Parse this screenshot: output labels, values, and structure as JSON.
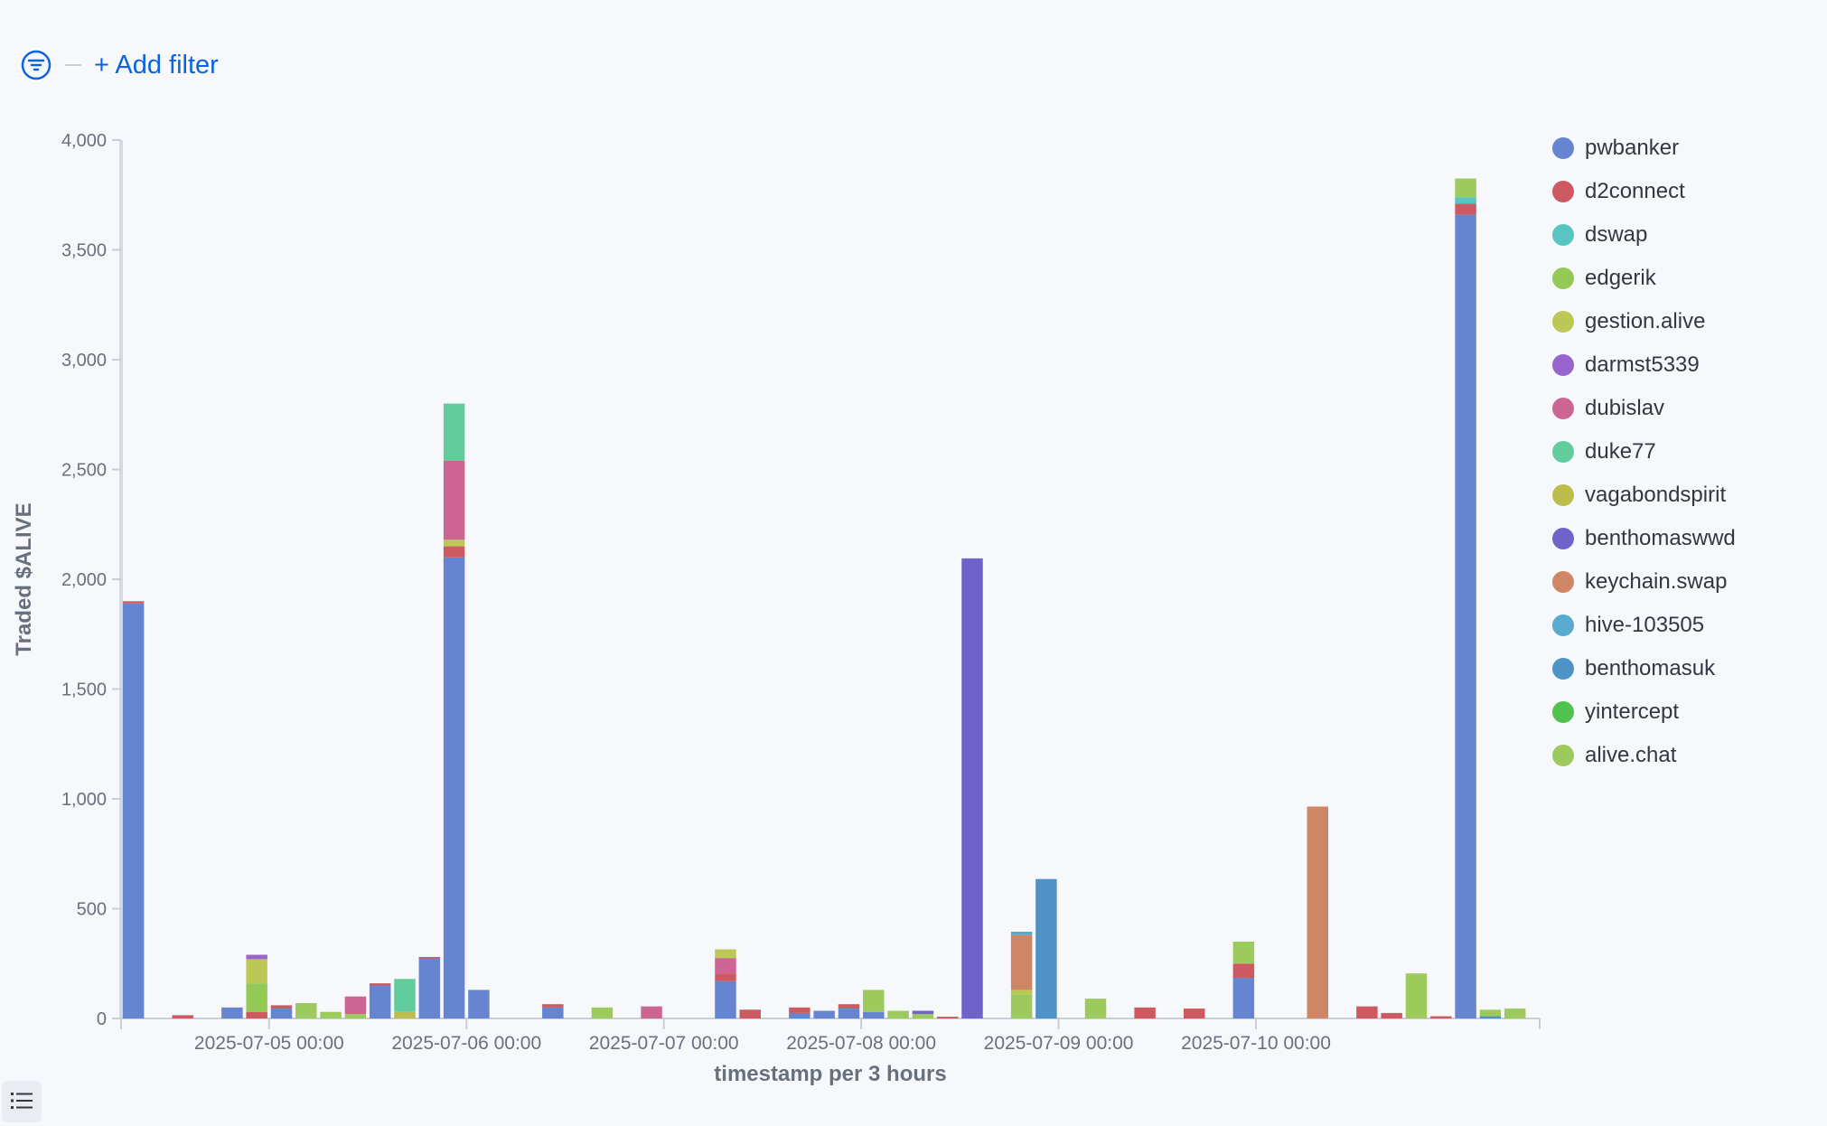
{
  "filter": {
    "add_label": "+ Add filter",
    "icon": "filter-icon"
  },
  "legend_toggle": {
    "icon": "list-icon"
  },
  "chart_data": {
    "type": "bar",
    "stacked": true,
    "xlabel": "timestamp per 3 hours",
    "ylabel": "Traded $ALIVE",
    "ylim": [
      0,
      4000
    ],
    "yticks": [
      0,
      500,
      1000,
      1500,
      2000,
      2500,
      3000,
      3500,
      4000
    ],
    "ytick_labels": [
      "0",
      "500",
      "1,000",
      "1,500",
      "2,000",
      "2,500",
      "3,000",
      "3,500",
      "4,000"
    ],
    "x_start": "2025-07-04 06:00",
    "x_end": "2025-07-11 06:00",
    "interval_hours": 3,
    "xtick_labels": [
      "2025-07-05 00:00",
      "2025-07-06 00:00",
      "2025-07-07 00:00",
      "2025-07-08 00:00",
      "2025-07-09 00:00",
      "2025-07-10 00:00"
    ],
    "grid": false,
    "legend_position": "right",
    "series": [
      {
        "name": "pwbanker",
        "color": "#6685d0"
      },
      {
        "name": "d2connect",
        "color": "#cc5a60"
      },
      {
        "name": "dswap",
        "color": "#58c5c2"
      },
      {
        "name": "edgerik",
        "color": "#94c955"
      },
      {
        "name": "gestion.alive",
        "color": "#bcc856"
      },
      {
        "name": "darmst5339",
        "color": "#9a64cf"
      },
      {
        "name": "dubislav",
        "color": "#cd6592"
      },
      {
        "name": "duke77",
        "color": "#62cc9c"
      },
      {
        "name": "vagabondspirit",
        "color": "#bdbd4e"
      },
      {
        "name": "benthomaswwd",
        "color": "#6f63c9"
      },
      {
        "name": "keychain.swap",
        "color": "#cf8664"
      },
      {
        "name": "hive-103505",
        "color": "#5aa9cf"
      },
      {
        "name": "benthomasuk",
        "color": "#4f93c6"
      },
      {
        "name": "yintercept",
        "color": "#4fc24f"
      },
      {
        "name": "alive.chat",
        "color": "#9dca5d"
      }
    ],
    "bars": [
      {
        "t": "2025-07-04 06:00",
        "stack": [
          [
            "pwbanker",
            1890
          ],
          [
            "d2connect",
            10
          ]
        ]
      },
      {
        "t": "2025-07-04 12:00",
        "stack": [
          [
            "d2connect",
            15
          ]
        ]
      },
      {
        "t": "2025-07-04 18:00",
        "stack": [
          [
            "pwbanker",
            50
          ]
        ]
      },
      {
        "t": "2025-07-04 21:00",
        "stack": [
          [
            "d2connect",
            30
          ],
          [
            "edgerik",
            130
          ],
          [
            "gestion.alive",
            110
          ],
          [
            "darmst5339",
            20
          ]
        ]
      },
      {
        "t": "2025-07-05 00:00",
        "stack": [
          [
            "pwbanker",
            45
          ],
          [
            "d2connect",
            15
          ]
        ]
      },
      {
        "t": "2025-07-05 03:00",
        "stack": [
          [
            "alive.chat",
            70
          ]
        ]
      },
      {
        "t": "2025-07-05 06:00",
        "stack": [
          [
            "alive.chat",
            30
          ]
        ]
      },
      {
        "t": "2025-07-05 09:00",
        "stack": [
          [
            "alive.chat",
            20
          ],
          [
            "dubislav",
            80
          ]
        ]
      },
      {
        "t": "2025-07-05 12:00",
        "stack": [
          [
            "pwbanker",
            150
          ],
          [
            "d2connect",
            10
          ]
        ]
      },
      {
        "t": "2025-07-05 15:00",
        "stack": [
          [
            "vagabondspirit",
            30
          ],
          [
            "duke77",
            150
          ]
        ]
      },
      {
        "t": "2025-07-05 18:00",
        "stack": [
          [
            "pwbanker",
            275
          ],
          [
            "d2connect",
            5
          ]
        ]
      },
      {
        "t": "2025-07-05 21:00",
        "stack": [
          [
            "pwbanker",
            2100
          ],
          [
            "d2connect",
            50
          ],
          [
            "gestion.alive",
            30
          ],
          [
            "dubislav",
            360
          ],
          [
            "duke77",
            260
          ]
        ]
      },
      {
        "t": "2025-07-06 00:00",
        "stack": [
          [
            "pwbanker",
            130
          ]
        ]
      },
      {
        "t": "2025-07-06 09:00",
        "stack": [
          [
            "pwbanker",
            50
          ],
          [
            "d2connect",
            15
          ]
        ]
      },
      {
        "t": "2025-07-06 15:00",
        "stack": [
          [
            "alive.chat",
            50
          ]
        ]
      },
      {
        "t": "2025-07-06 21:00",
        "stack": [
          [
            "dubislav",
            55
          ]
        ]
      },
      {
        "t": "2025-07-07 06:00",
        "stack": [
          [
            "pwbanker",
            170
          ],
          [
            "d2connect",
            35
          ],
          [
            "dubislav",
            70
          ],
          [
            "gestion.alive",
            40
          ]
        ]
      },
      {
        "t": "2025-07-07 09:00",
        "stack": [
          [
            "d2connect",
            40
          ]
        ]
      },
      {
        "t": "2025-07-07 15:00",
        "stack": [
          [
            "pwbanker",
            25
          ],
          [
            "d2connect",
            25
          ]
        ]
      },
      {
        "t": "2025-07-07 18:00",
        "stack": [
          [
            "pwbanker",
            35
          ]
        ]
      },
      {
        "t": "2025-07-07 21:00",
        "stack": [
          [
            "pwbanker",
            45
          ],
          [
            "d2connect",
            20
          ]
        ]
      },
      {
        "t": "2025-07-08 00:00",
        "stack": [
          [
            "pwbanker",
            30
          ],
          [
            "alive.chat",
            100
          ]
        ]
      },
      {
        "t": "2025-07-08 03:00",
        "stack": [
          [
            "alive.chat",
            35
          ]
        ]
      },
      {
        "t": "2025-07-08 06:00",
        "stack": [
          [
            "alive.chat",
            20
          ],
          [
            "benthomaswwd",
            15
          ]
        ]
      },
      {
        "t": "2025-07-08 09:00",
        "stack": [
          [
            "d2connect",
            8
          ]
        ]
      },
      {
        "t": "2025-07-08 12:00",
        "stack": [
          [
            "benthomaswwd",
            2095
          ]
        ]
      },
      {
        "t": "2025-07-08 18:00",
        "stack": [
          [
            "alive.chat",
            110
          ],
          [
            "gestion.alive",
            20
          ],
          [
            "keychain.swap",
            250
          ],
          [
            "hive-103505",
            15
          ]
        ]
      },
      {
        "t": "2025-07-08 21:00",
        "stack": [
          [
            "benthomasuk",
            635
          ]
        ]
      },
      {
        "t": "2025-07-09 03:00",
        "stack": [
          [
            "alive.chat",
            90
          ]
        ]
      },
      {
        "t": "2025-07-09 09:00",
        "stack": [
          [
            "d2connect",
            50
          ]
        ]
      },
      {
        "t": "2025-07-09 15:00",
        "stack": [
          [
            "d2connect",
            45
          ]
        ]
      },
      {
        "t": "2025-07-09 21:00",
        "stack": [
          [
            "pwbanker",
            185
          ],
          [
            "d2connect",
            65
          ],
          [
            "alive.chat",
            100
          ]
        ]
      },
      {
        "t": "2025-07-10 06:00",
        "stack": [
          [
            "keychain.swap",
            965
          ]
        ]
      },
      {
        "t": "2025-07-10 12:00",
        "stack": [
          [
            "d2connect",
            55
          ]
        ]
      },
      {
        "t": "2025-07-10 15:00",
        "stack": [
          [
            "d2connect",
            25
          ]
        ]
      },
      {
        "t": "2025-07-10 18:00",
        "stack": [
          [
            "alive.chat",
            205
          ]
        ]
      },
      {
        "t": "2025-07-10 21:00",
        "stack": [
          [
            "d2connect",
            10
          ]
        ]
      },
      {
        "t": "2025-07-11 00:00",
        "stack": [
          [
            "pwbanker",
            3660
          ],
          [
            "d2connect",
            50
          ],
          [
            "dswap",
            30
          ],
          [
            "alive.chat",
            85
          ]
        ]
      },
      {
        "t": "2025-07-11 03:00",
        "stack": [
          [
            "benthomasuk",
            10
          ],
          [
            "alive.chat",
            30
          ]
        ]
      },
      {
        "t": "2025-07-11 06:00",
        "stack": [
          [
            "alive.chat",
            45
          ]
        ]
      }
    ]
  }
}
